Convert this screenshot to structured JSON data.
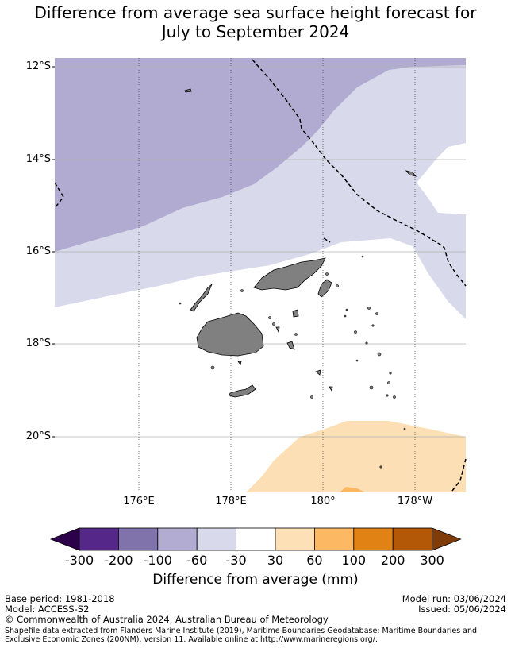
{
  "title": {
    "line1": "Difference from average sea surface height forecast for",
    "line2": "July to September 2024"
  },
  "map": {
    "lat_labels": [
      "12°S",
      "14°S",
      "16°S",
      "18°S",
      "20°S"
    ],
    "lon_labels": [
      "176°E",
      "178°E",
      "180°",
      "178°W"
    ],
    "colors": {
      "minus100_to_minus60": "#b1abd2",
      "minus60_to_minus30": "#d8d9ea",
      "minus30_to_30": "#ffffff",
      "30_to_60": "#fddfb5",
      "60_to_100": "#fbb75f",
      "land": "#808080"
    }
  },
  "colorbar": {
    "ticks": [
      "-300",
      "-200",
      "-100",
      "-60",
      "-30",
      "30",
      "60",
      "100",
      "200",
      "300"
    ],
    "colors": [
      "#2d004b",
      "#542788",
      "#8073ac",
      "#b2abd2",
      "#d8daeb",
      "#ffffff",
      "#fee0b6",
      "#fdb863",
      "#e08214",
      "#b35806",
      "#7f3b08"
    ],
    "label": "Difference from average (mm)"
  },
  "footer": {
    "base_period": "Base period: 1981-2018",
    "model": "Model: ACCESS-S2",
    "model_run": "Model run: 03/06/2024",
    "issued": "Issued: 05/06/2024",
    "copyright": "© Commonwealth of Australia 2024, Australian Bureau of Meteorology",
    "shapefile_note": "Shapefile data extracted from Flanders Marine Institute (2019), Maritime Boundaries Geodatabase: Maritime Boundaries and Exclusive Economic Zones (200NM), version 11. Available online at http://www.marineregions.org/."
  }
}
